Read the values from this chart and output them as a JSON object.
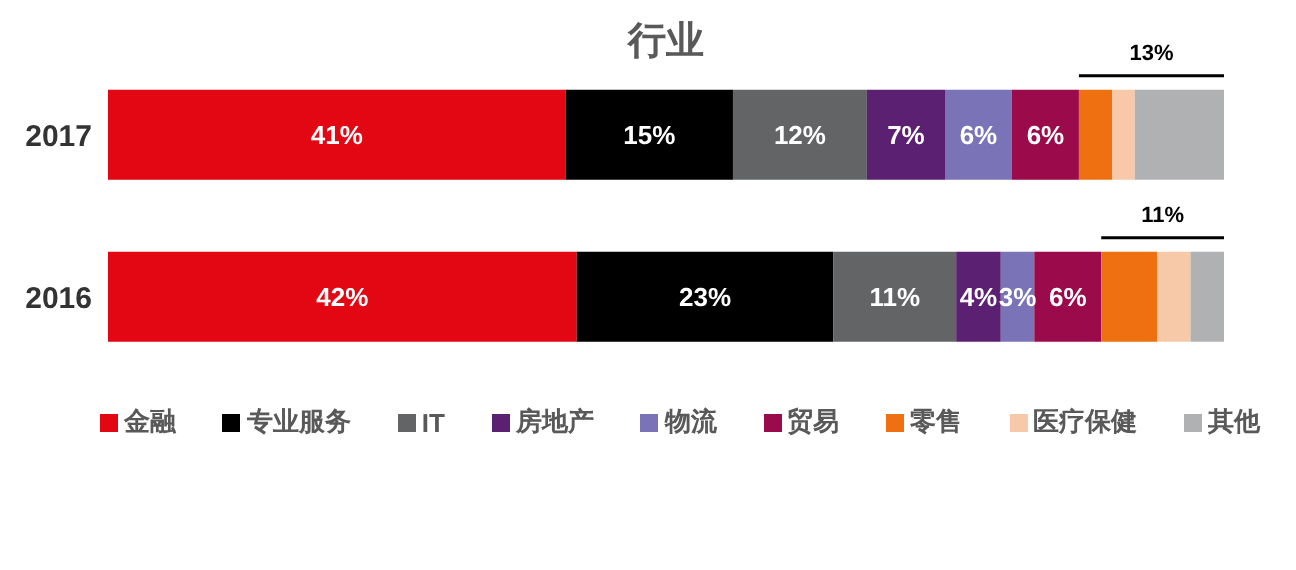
{
  "chart_data": {
    "type": "bar",
    "orientation": "horizontal",
    "stacked": true,
    "title": "行业",
    "categories": [
      "2017",
      "2016"
    ],
    "legend": "bottom",
    "series": [
      {
        "name": "金融",
        "color": "#e30613",
        "values": [
          41,
          42
        ],
        "value_labels": [
          "41%",
          "42%"
        ]
      },
      {
        "name": "专业服务",
        "color": "#000000",
        "values": [
          15,
          23
        ],
        "value_labels": [
          "15%",
          "23%"
        ]
      },
      {
        "name": "IT",
        "color": "#636466",
        "values": [
          12,
          11
        ],
        "value_labels": [
          "12%",
          "11%"
        ]
      },
      {
        "name": "房地产",
        "color": "#5c2073",
        "values": [
          7,
          4
        ],
        "value_labels": [
          "7%",
          "4%"
        ]
      },
      {
        "name": "物流",
        "color": "#7b73b8",
        "values": [
          6,
          3
        ],
        "value_labels": [
          "6%",
          "3%"
        ]
      },
      {
        "name": "贸易",
        "color": "#9b0a4a",
        "values": [
          6,
          6
        ],
        "value_labels": [
          "6%",
          "6%"
        ]
      },
      {
        "name": "零售",
        "color": "#ee7011",
        "values": [
          3,
          5
        ],
        "value_labels": [
          null,
          null
        ]
      },
      {
        "name": "医疗保健",
        "color": "#f8c9a9",
        "values": [
          2,
          3
        ],
        "value_labels": [
          null,
          null
        ]
      },
      {
        "name": "其他",
        "color": "#b0b1b3",
        "values": [
          8,
          3
        ],
        "value_labels": [
          null,
          null
        ]
      }
    ],
    "annotations": [
      "13%",
      "11%"
    ]
  }
}
